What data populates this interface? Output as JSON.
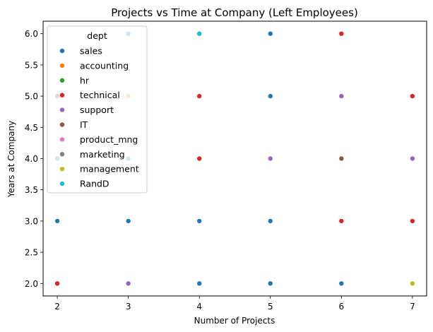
{
  "chart_data": {
    "type": "scatter",
    "title": "Projects vs Time at Company (Left Employees)",
    "xlabel": "Number of Projects",
    "ylabel": "Years at Company",
    "xlim": [
      1.8,
      7.2
    ],
    "ylim": [
      1.8,
      6.2
    ],
    "x_ticks": [
      2,
      3,
      4,
      5,
      6,
      7
    ],
    "y_ticks": [
      2.0,
      2.5,
      3.0,
      3.5,
      4.0,
      4.5,
      5.0,
      5.5,
      6.0
    ],
    "legend_title": "dept",
    "legend_placement": "upper-left",
    "grid": false,
    "series": [
      {
        "name": "sales",
        "color": "#1f77b4",
        "points": [
          [
            2,
            3
          ],
          [
            3,
            3
          ],
          [
            4,
            3
          ],
          [
            5,
            3
          ],
          [
            4,
            2
          ],
          [
            5,
            2
          ],
          [
            6,
            2
          ],
          [
            5,
            5
          ],
          [
            5,
            6
          ]
        ]
      },
      {
        "name": "accounting",
        "color": "#ff7f0e",
        "points": [
          [
            3,
            5
          ]
        ]
      },
      {
        "name": "hr",
        "color": "#2ca02c",
        "points": []
      },
      {
        "name": "technical",
        "color": "#d62728",
        "points": [
          [
            2,
            2
          ],
          [
            4,
            5
          ],
          [
            4,
            4
          ],
          [
            6,
            6
          ],
          [
            6,
            3
          ],
          [
            7,
            5
          ],
          [
            7,
            3
          ]
        ]
      },
      {
        "name": "support",
        "color": "#9467bd",
        "points": [
          [
            3,
            2
          ],
          [
            5,
            4
          ],
          [
            6,
            5
          ],
          [
            7,
            4
          ]
        ]
      },
      {
        "name": "IT",
        "color": "#8c564b",
        "points": [
          [
            6,
            4
          ]
        ]
      },
      {
        "name": "product_mng",
        "color": "#e377c2",
        "points": []
      },
      {
        "name": "marketing",
        "color": "#7f7f7f",
        "points": []
      },
      {
        "name": "management",
        "color": "#bcbd22",
        "points": [
          [
            7,
            2
          ]
        ]
      },
      {
        "name": "RandD",
        "color": "#17becf",
        "points": [
          [
            4,
            6
          ]
        ]
      }
    ],
    "hidden_behind_legend": [
      {
        "series": "sales",
        "x": 3,
        "y": 6
      },
      {
        "series": "sales",
        "x": 3,
        "y": 4
      },
      {
        "series": "sales",
        "x": 2,
        "y": 4
      },
      {
        "series": "technical",
        "x": 2,
        "y": 5
      }
    ]
  }
}
